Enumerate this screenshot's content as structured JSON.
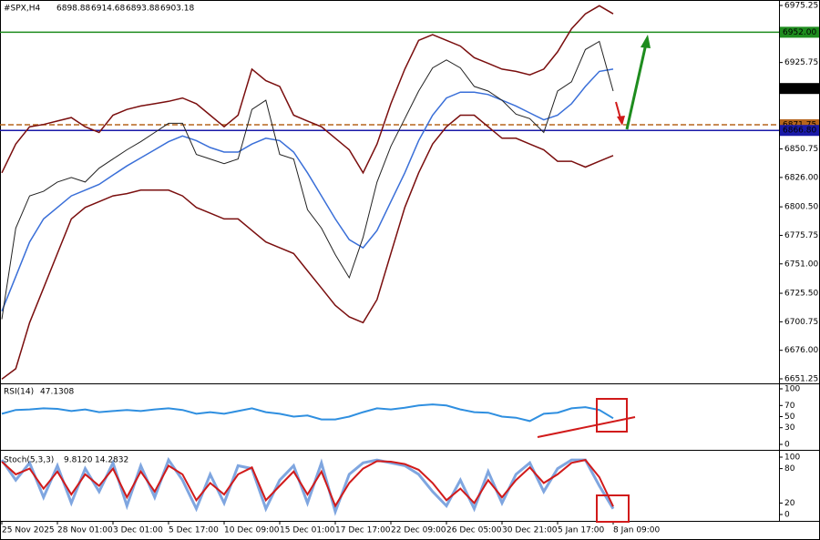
{
  "chart_data": [
    {
      "type": "line",
      "title": "#SPX,H4",
      "ohlc": [
        6898.88,
        6914.68,
        6893.88,
        6903.18
      ],
      "ylim": [
        6651.25,
        6975.25
      ],
      "yticks": [
        {
          "value": 6651.25,
          "label": "6651.25"
        },
        {
          "value": 6676,
          "label": "6676.00"
        },
        {
          "value": 6700.75,
          "label": "6700.75"
        },
        {
          "value": 6725.5,
          "label": "6725.50"
        },
        {
          "value": 6751,
          "label": "6751.00"
        },
        {
          "value": 6775.75,
          "label": "6775.75"
        },
        {
          "value": 6800.5,
          "label": "6800.50"
        },
        {
          "value": 6826,
          "label": "6826.00"
        },
        {
          "value": 6850.75,
          "label": "6850.75"
        },
        {
          "value": 6925.75,
          "label": "6925.75"
        },
        {
          "value": 6975.25,
          "label": "6975.25"
        }
      ],
      "xlim": [
        0,
        44
      ],
      "xticks": [
        {
          "value": 0,
          "label": "25 Nov 2025"
        },
        {
          "value": 4,
          "label": "28 Nov 01:00"
        },
        {
          "value": 8,
          "label": "3 Dec 01:00"
        },
        {
          "value": 12,
          "label": "5 Dec 17:00"
        },
        {
          "value": 16,
          "label": "10 Dec 09:00"
        },
        {
          "value": 20,
          "label": "15 Dec 01:00"
        },
        {
          "value": 24,
          "label": "17 Dec 17:00"
        },
        {
          "value": 28,
          "label": "22 Dec 09:00"
        },
        {
          "value": 32,
          "label": "26 Dec 05:00"
        },
        {
          "value": 36,
          "label": "30 Dec 21:00"
        },
        {
          "value": 40,
          "label": "5 Jan 17:00"
        },
        {
          "value": 44,
          "label": "8 Jan 09:00"
        }
      ],
      "levels": [
        {
          "value": 6952,
          "label": "6952.00",
          "color": "#1e8c1e",
          "line": true
        },
        {
          "value": 6903.18,
          "label": "6903.18",
          "color": "#000000",
          "line": false
        },
        {
          "value": 6871.75,
          "label": "6871.75",
          "color": "#b5651d",
          "line": true,
          "dashed": true
        },
        {
          "value": 6866.8,
          "label": "6866.80",
          "color": "#1a1aa8",
          "line": true
        }
      ],
      "series": [
        {
          "color": "#7a0e0e",
          "width": 1.5,
          "values": [
            6830,
            6855,
            6870,
            6872,
            6875,
            6878,
            6870,
            6865,
            6880,
            6885,
            6888,
            6890,
            6892,
            6895,
            6890,
            6880,
            6870,
            6880,
            6920,
            6910,
            6905,
            6880,
            6875,
            6870,
            6860,
            6850,
            6830,
            6855,
            6890,
            6920,
            6945,
            6950,
            6945,
            6940,
            6930,
            6925,
            6920,
            6918,
            6915,
            6920,
            6935,
            6955,
            6968,
            6975,
            6968
          ]
        },
        {
          "color": "#7a0e0e",
          "width": 1.5,
          "values": [
            6651,
            6660,
            6700,
            6730,
            6760,
            6790,
            6800,
            6805,
            6810,
            6812,
            6815,
            6815,
            6815,
            6810,
            6800,
            6795,
            6790,
            6790,
            6780,
            6770,
            6765,
            6760,
            6745,
            6730,
            6715,
            6705,
            6700,
            6720,
            6760,
            6800,
            6830,
            6855,
            6870,
            6880,
            6880,
            6870,
            6860,
            6860,
            6855,
            6850,
            6840,
            6840,
            6835,
            6840,
            6845
          ]
        },
        {
          "color": "#3a6fd8",
          "width": 1.5,
          "values": [
            6710,
            6740,
            6770,
            6790,
            6800,
            6810,
            6815,
            6820,
            6828,
            6836,
            6843,
            6850,
            6857,
            6862,
            6858,
            6852,
            6848,
            6848,
            6855,
            6860,
            6858,
            6848,
            6830,
            6810,
            6790,
            6772,
            6765,
            6780,
            6805,
            6830,
            6858,
            6880,
            6895,
            6900,
            6900,
            6898,
            6893,
            6888,
            6882,
            6876,
            6880,
            6890,
            6905,
            6918,
            6920
          ]
        },
        {
          "color": "#222222",
          "width": 1,
          "values": [
            6703,
            6782,
            6810,
            6814,
            6822,
            6826,
            6822,
            6834,
            6842,
            6850,
            6857,
            6865,
            6873,
            6873,
            6846,
            6842,
            6838,
            6842,
            6885,
            6893,
            6846,
            6842,
            6798,
            6782,
            6759,
            6739,
            6774,
            6822,
            6853,
            6877,
            6901,
            6921,
            6928,
            6921,
            6905,
            6901,
            6893,
            6881,
            6877,
            6865,
            6901,
            6909,
            6937,
            6944,
            6901
          ]
        }
      ]
    },
    {
      "type": "line",
      "title": "RSI(14)",
      "reading": 47.1308,
      "ylim": [
        0,
        100
      ],
      "yticks": [
        0,
        30,
        50,
        70,
        100
      ],
      "series": [
        {
          "color": "#2f8fe0",
          "width": 2,
          "values": [
            55,
            62,
            63,
            65,
            64,
            60,
            63,
            58,
            60,
            62,
            60,
            63,
            65,
            62,
            55,
            58,
            55,
            60,
            65,
            58,
            55,
            50,
            52,
            45,
            45,
            50,
            58,
            65,
            63,
            66,
            70,
            72,
            70,
            63,
            58,
            57,
            50,
            48,
            42,
            55,
            57,
            65,
            67,
            62,
            47
          ]
        }
      ]
    },
    {
      "type": "line",
      "title": "Stoch(5,3,3)",
      "readings": [
        {
          "value": 9.812,
          "label": "9.8120"
        },
        {
          "value": 14.2832,
          "label": "14.2832"
        }
      ],
      "ylim": [
        0,
        100
      ],
      "yticks": [
        0,
        20,
        80,
        100
      ],
      "series": [
        {
          "color": "#7fa6e0",
          "width": 3,
          "values": [
            95,
            60,
            90,
            30,
            85,
            20,
            80,
            40,
            90,
            15,
            85,
            30,
            95,
            60,
            10,
            70,
            20,
            85,
            80,
            10,
            60,
            85,
            20,
            90,
            5,
            70,
            90,
            95,
            90,
            85,
            70,
            40,
            15,
            60,
            10,
            75,
            20,
            70,
            90,
            40,
            80,
            95,
            95,
            50,
            10
          ]
        },
        {
          "color": "#d11a1a",
          "width": 2,
          "values": [
            92,
            70,
            80,
            45,
            75,
            35,
            70,
            50,
            80,
            30,
            75,
            40,
            85,
            70,
            25,
            55,
            35,
            70,
            82,
            25,
            50,
            75,
            35,
            75,
            15,
            55,
            80,
            93,
            92,
            88,
            78,
            55,
            25,
            45,
            20,
            60,
            30,
            60,
            82,
            55,
            70,
            90,
            95,
            65,
            14
          ]
        }
      ]
    }
  ]
}
